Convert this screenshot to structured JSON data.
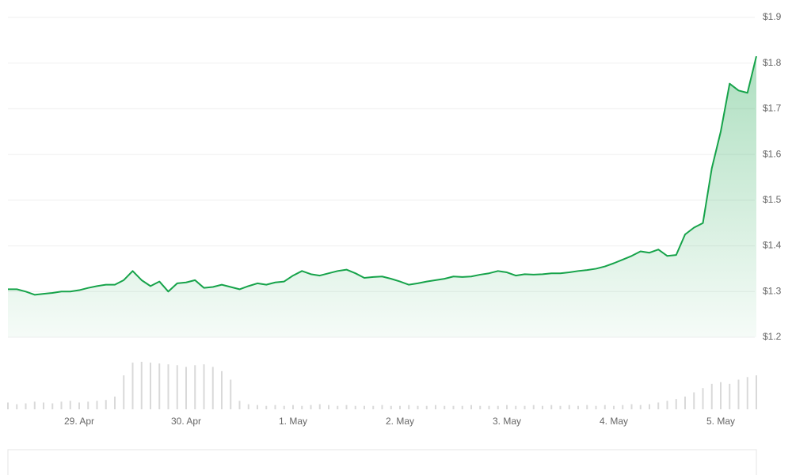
{
  "chart_data": {
    "type": "line",
    "categories": [
      null,
      null,
      null,
      null,
      null,
      null,
      null,
      null,
      "29. Apr",
      null,
      null,
      null,
      null,
      null,
      null,
      null,
      null,
      null,
      null,
      null,
      "30. Apr",
      null,
      null,
      null,
      null,
      null,
      null,
      null,
      null,
      null,
      null,
      null,
      "1. May",
      null,
      null,
      null,
      null,
      null,
      null,
      null,
      null,
      null,
      null,
      null,
      "2. May",
      null,
      null,
      null,
      null,
      null,
      null,
      null,
      null,
      null,
      null,
      null,
      "3. May",
      null,
      null,
      null,
      null,
      null,
      null,
      null,
      null,
      null,
      null,
      null,
      "4. May",
      null,
      null,
      null,
      null,
      null,
      null,
      null,
      null,
      null,
      null,
      null,
      "5. May",
      null,
      null,
      null,
      null
    ],
    "series": [
      {
        "color": "#16a34a",
        "values": [
          1.305,
          1.305,
          1.3,
          1.293,
          1.295,
          1.297,
          1.3,
          1.3,
          1.303,
          1.308,
          1.312,
          1.315,
          1.315,
          1.325,
          1.345,
          1.325,
          1.312,
          1.322,
          1.3,
          1.318,
          1.32,
          1.325,
          1.308,
          1.31,
          1.315,
          1.31,
          1.305,
          1.312,
          1.318,
          1.315,
          1.32,
          1.322,
          1.335,
          1.345,
          1.338,
          1.335,
          1.34,
          1.345,
          1.348,
          1.34,
          1.33,
          1.332,
          1.333,
          1.328,
          1.322,
          1.315,
          1.318,
          1.322,
          1.325,
          1.328,
          1.333,
          1.332,
          1.333,
          1.337,
          1.34,
          1.345,
          1.342,
          1.335,
          1.338,
          1.337,
          1.338,
          1.34,
          1.34,
          1.342,
          1.345,
          1.347,
          1.35,
          1.355,
          1.362,
          1.37,
          1.378,
          1.388,
          1.385,
          1.392,
          1.378,
          1.38,
          1.425,
          1.44,
          1.45,
          1.57,
          1.65,
          1.755,
          1.74,
          1.735,
          1.815
        ]
      }
    ],
    "volume": {
      "color": "#d9d9d9",
      "values": [
        8,
        6,
        7,
        9,
        8,
        7,
        9,
        10,
        8,
        9,
        10,
        11,
        15,
        40,
        55,
        56,
        55,
        54,
        53,
        52,
        50,
        52,
        53,
        50,
        45,
        35,
        10,
        6,
        5,
        4,
        5,
        4,
        5,
        4,
        5,
        6,
        5,
        4,
        5,
        4,
        4,
        4,
        5,
        4,
        4,
        5,
        4,
        4,
        5,
        4,
        4,
        4,
        5,
        4,
        4,
        4,
        5,
        4,
        4,
        5,
        4,
        5,
        4,
        5,
        4,
        5,
        4,
        5,
        4,
        5,
        6,
        5,
        6,
        8,
        10,
        12,
        15,
        20,
        25,
        30,
        32,
        30,
        35,
        38,
        40
      ]
    },
    "ylim": [
      1.2,
      1.9
    ],
    "yticks": [
      {
        "value": 1.2,
        "label": "$1.2"
      },
      {
        "value": 1.3,
        "label": "$1.3"
      },
      {
        "value": 1.4,
        "label": "$1.4"
      },
      {
        "value": 1.5,
        "label": "$1.5"
      },
      {
        "value": 1.6,
        "label": "$1.6"
      },
      {
        "value": 1.7,
        "label": "$1.7"
      },
      {
        "value": 1.8,
        "label": "$1.8"
      },
      {
        "value": 1.9,
        "label": "$1.9"
      }
    ],
    "grid": true
  }
}
